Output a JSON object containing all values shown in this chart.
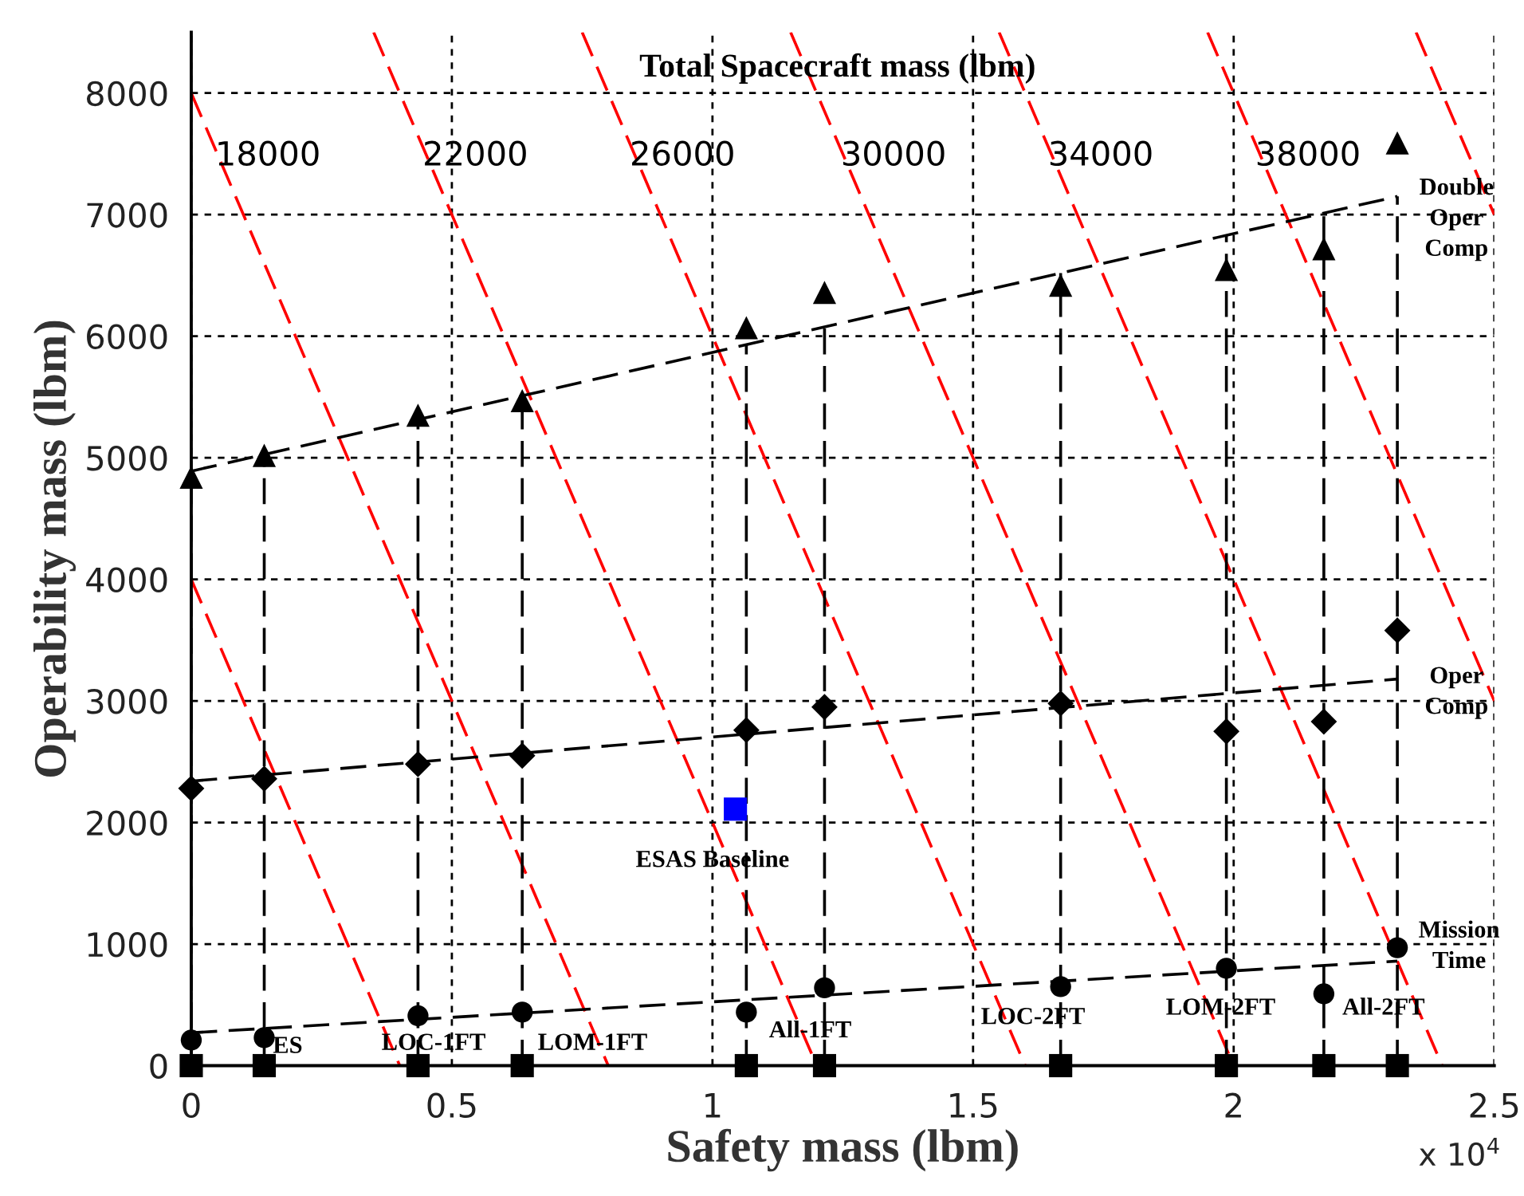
{
  "chart_data": {
    "type": "scatter",
    "xlabel": "Safety mass (lbm)",
    "ylabel": "Operability mass (lbm)",
    "xlim": [
      0,
      2.5
    ],
    "ylim": [
      0,
      8500
    ],
    "xticks": [
      0,
      0.5,
      1,
      1.5,
      2,
      2.5
    ],
    "yticks": [
      0,
      1000,
      2000,
      3000,
      4000,
      5000,
      6000,
      7000,
      8000
    ],
    "grid": true,
    "series": [
      {
        "type": "line",
        "color": "#ff0000",
        "line_style": "dashed",
        "x": [
          0,
          0.4
        ],
        "values": [
          4000,
          0
        ]
      },
      {
        "type": "line",
        "color": "#ff0000",
        "line_style": "dashed",
        "x": [
          0,
          0.8
        ],
        "values": [
          8000,
          0
        ]
      },
      {
        "type": "line",
        "color": "#ff0000",
        "line_style": "dashed",
        "x": [
          0.35,
          1.2
        ],
        "values": [
          8500,
          0
        ]
      },
      {
        "type": "line",
        "color": "#ff0000",
        "line_style": "dashed",
        "x": [
          0.75,
          1.6
        ],
        "values": [
          8500,
          0
        ]
      },
      {
        "type": "line",
        "color": "#ff0000",
        "line_style": "dashed",
        "x": [
          1.15,
          2.0
        ],
        "values": [
          8500,
          0
        ]
      },
      {
        "type": "line",
        "color": "#ff0000",
        "line_style": "dashed",
        "x": [
          1.55,
          2.4
        ],
        "values": [
          8500,
          0
        ]
      },
      {
        "type": "line",
        "color": "#ff0000",
        "line_style": "dashed",
        "x": [
          1.95,
          2.5
        ],
        "values": [
          8500,
          3000
        ]
      },
      {
        "type": "line",
        "color": "#ff0000",
        "line_style": "dashed",
        "x": [
          2.35,
          2.5
        ],
        "values": [
          8500,
          7000
        ]
      },
      {
        "type": "line",
        "color": "#000000",
        "line_style": "dashed",
        "x": [
          0,
          0
        ],
        "values": [
          0,
          4890
        ]
      },
      {
        "type": "line",
        "color": "#000000",
        "line_style": "dashed",
        "x": [
          0.14,
          0.14
        ],
        "values": [
          0,
          5020
        ]
      },
      {
        "type": "line",
        "color": "#000000",
        "line_style": "dashed",
        "x": [
          0.435,
          0.435
        ],
        "values": [
          0,
          5350
        ]
      },
      {
        "type": "line",
        "color": "#000000",
        "line_style": "dashed",
        "x": [
          0.635,
          0.635
        ],
        "values": [
          0,
          5510
        ]
      },
      {
        "type": "line",
        "color": "#000000",
        "line_style": "dashed",
        "x": [
          1.065,
          1.065
        ],
        "values": [
          0,
          5930
        ]
      },
      {
        "type": "line",
        "color": "#000000",
        "line_style": "dashed",
        "x": [
          1.215,
          1.215
        ],
        "values": [
          0,
          6080
        ]
      },
      {
        "type": "line",
        "color": "#000000",
        "line_style": "dashed",
        "x": [
          1.668,
          1.668
        ],
        "values": [
          0,
          6520
        ]
      },
      {
        "type": "line",
        "color": "#000000",
        "line_style": "dashed",
        "x": [
          1.986,
          1.986
        ],
        "values": [
          0,
          6830
        ]
      },
      {
        "type": "line",
        "color": "#000000",
        "line_style": "dashed",
        "x": [
          2.173,
          2.173
        ],
        "values": [
          0,
          7010
        ]
      },
      {
        "type": "line",
        "color": "#000000",
        "line_style": "dashed",
        "x": [
          2.314,
          2.314
        ],
        "values": [
          0,
          7150
        ]
      },
      {
        "type": "line",
        "color": "#000000",
        "line_style": "dashed",
        "x": [
          0,
          2.314
        ],
        "values": [
          4890,
          7150
        ]
      },
      {
        "type": "line",
        "color": "#000000",
        "line_style": "dashed",
        "x": [
          0,
          2.314
        ],
        "values": [
          2340,
          3180
        ]
      },
      {
        "type": "line",
        "color": "#000000",
        "line_style": "dashed",
        "x": [
          0,
          2.314
        ],
        "values": [
          270,
          860
        ]
      },
      {
        "color": "#000000",
        "marker": "triangle",
        "x": [
          0,
          0.14,
          0.435,
          0.635,
          1.065,
          1.215,
          1.668,
          1.986,
          2.173,
          2.314
        ],
        "values": [
          4840,
          5020,
          5350,
          5470,
          6070,
          6360,
          6420,
          6550,
          6720,
          7590
        ]
      },
      {
        "color": "#000000",
        "marker": "diamond",
        "x": [
          0,
          0.14,
          0.435,
          0.635,
          1.065,
          1.215,
          1.668,
          1.986,
          2.173,
          2.314
        ],
        "values": [
          2280,
          2360,
          2480,
          2550,
          2760,
          2950,
          2980,
          2750,
          2830,
          3580
        ]
      },
      {
        "color": "#000000",
        "marker": "circle",
        "x": [
          0,
          0.14,
          0.435,
          0.635,
          1.065,
          1.215,
          1.668,
          1.986,
          2.173,
          2.314
        ],
        "values": [
          210,
          230,
          410,
          440,
          440,
          640,
          650,
          800,
          590,
          970
        ]
      },
      {
        "color": "#000000",
        "marker": "square",
        "x": [
          0,
          0.14,
          0.435,
          0.635,
          1.065,
          1.215,
          1.668,
          1.986,
          2.173,
          2.314
        ],
        "values": [
          0,
          0,
          0,
          0,
          0,
          0,
          0,
          0,
          0,
          0
        ]
      },
      {
        "color": "#0000ff",
        "marker": "square",
        "x": [
          1.044
        ],
        "values": [
          2110
        ]
      }
    ],
    "annotations": [
      "Total Spacecraft mass (lbm)",
      "18000",
      "22000",
      "26000",
      "30000",
      "34000",
      "38000",
      "Double\nOper\nComp",
      "Oper\nComp",
      "Mission\nTime",
      "ES",
      "LOC-1FT",
      "LOM-1FT",
      "All-1FT",
      "LOC-2FT",
      "LOM-2FT",
      "All-2FT",
      "ESAS Baseline",
      "x 10$^{4}$"
    ]
  }
}
